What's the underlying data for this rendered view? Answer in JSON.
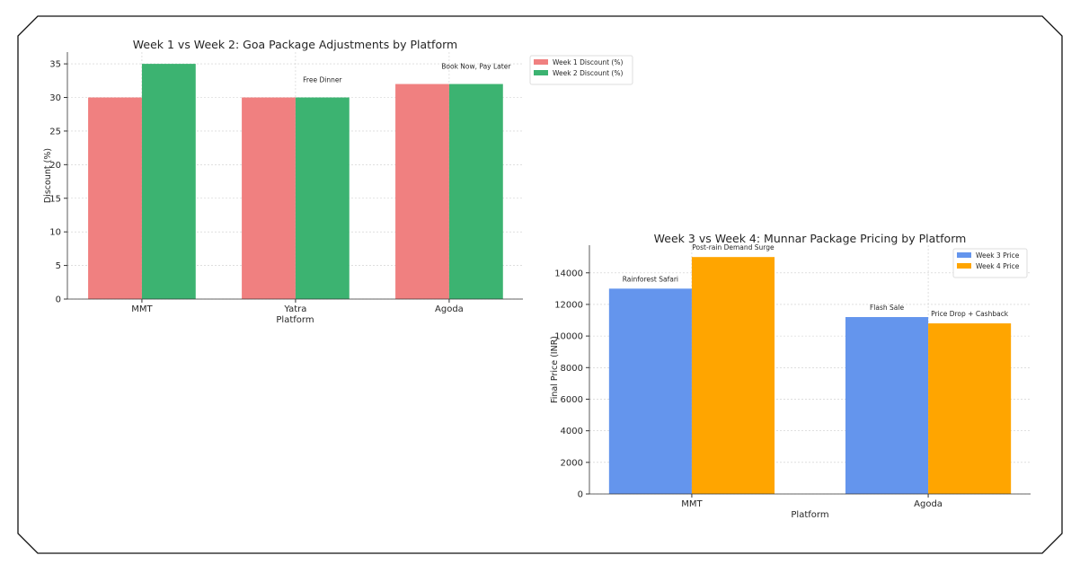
{
  "chart_data": [
    {
      "type": "bar",
      "title": "Week 1 vs Week 2: Goa Package Adjustments by Platform",
      "xlabel": "Platform",
      "ylabel": "Discount (%)",
      "categories": [
        "MMT",
        "Yatra",
        "Agoda"
      ],
      "series": [
        {
          "name": "Week 1 Discount (%)",
          "values": [
            30,
            30,
            32
          ],
          "color": "#f08080"
        },
        {
          "name": "Week 2 Discount (%)",
          "values": [
            35,
            30,
            32
          ],
          "color": "#3cb371"
        }
      ],
      "annotations": [
        {
          "text": "Free Dinner",
          "category": "Yatra",
          "series": 1
        },
        {
          "text": "Book Now, Pay Later",
          "category": "Agoda",
          "series": 1
        }
      ],
      "yticks": [
        0,
        5,
        10,
        15,
        20,
        25,
        30,
        35
      ],
      "ylim": [
        0,
        36.75
      ],
      "grid": true,
      "legend": "top-right"
    },
    {
      "type": "bar",
      "title": "Week 3 vs Week 4: Munnar Package Pricing by Platform",
      "xlabel": "Platform",
      "ylabel": "Final Price (INR)",
      "categories": [
        "MMT",
        "Agoda"
      ],
      "series": [
        {
          "name": "Week 3 Price",
          "values": [
            13000,
            11200
          ],
          "color": "#6495ed"
        },
        {
          "name": "Week 4 Price",
          "values": [
            15000,
            10800
          ],
          "color": "#ffa500"
        }
      ],
      "annotations": [
        {
          "text": "Rainforest Safari",
          "category": "MMT",
          "series": 0
        },
        {
          "text": "Post-rain Demand Surge",
          "category": "MMT",
          "series": 1
        },
        {
          "text": "Flash Sale",
          "category": "Agoda",
          "series": 0
        },
        {
          "text": "Price Drop + Cashback",
          "category": "Agoda",
          "series": 1
        }
      ],
      "yticks": [
        0,
        2000,
        4000,
        6000,
        8000,
        10000,
        12000,
        14000
      ],
      "ylim": [
        0,
        15750
      ],
      "grid": true,
      "legend": "top-right"
    }
  ]
}
